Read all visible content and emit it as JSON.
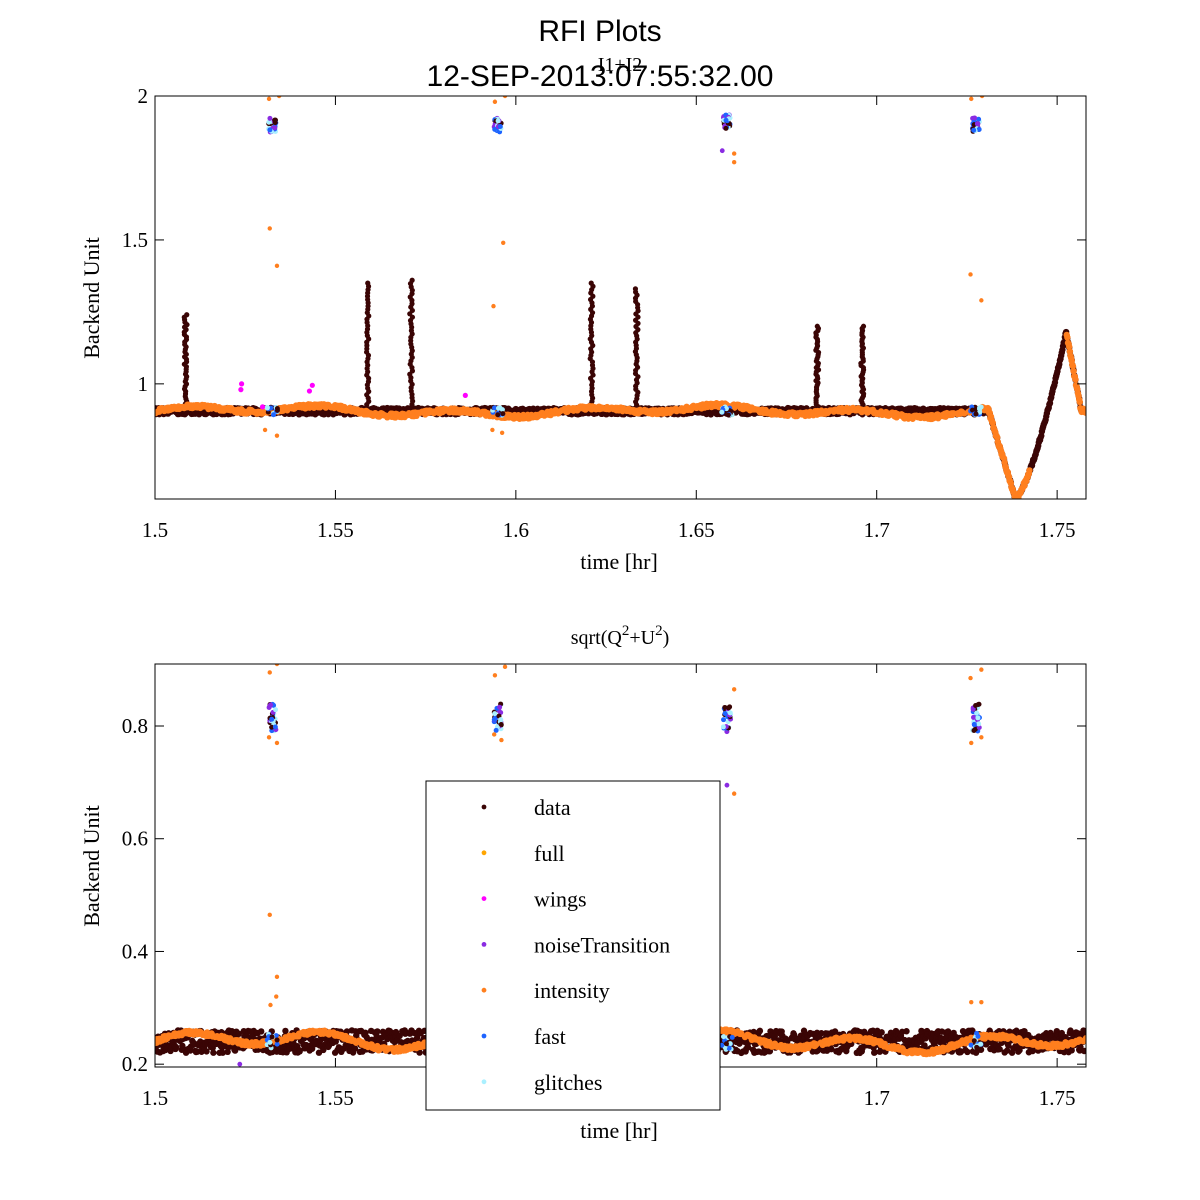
{
  "figure": {
    "title": "RFI Plots",
    "subtitle": "12-SEP-2013:07:55:32.00"
  },
  "colors": {
    "data": "#3a0505",
    "full": "#ffa500",
    "wings": "#ff00ff",
    "noiseTransition": "#8a2be2",
    "intensity": "#ff7f1e",
    "fast": "#1e64ff",
    "glitches": "#aaf0ff"
  },
  "chart_data": [
    {
      "type": "scatter",
      "title": "I1+I2",
      "xlabel": "time [hr]",
      "ylabel": "Backend Unit",
      "xlim": [
        1.5,
        1.758
      ],
      "ylim": [
        0.6,
        2.0
      ],
      "xticks": [
        1.5,
        1.55,
        1.6,
        1.65,
        1.7,
        1.75
      ],
      "xtick_labels": [
        "1.5",
        "1.55",
        "1.6",
        "1.65",
        "1.7",
        "1.75"
      ],
      "yticks": [
        1,
        1.5,
        2
      ],
      "ytick_labels": [
        "1",
        "1.5",
        "2"
      ],
      "baseline": 0.905,
      "spikes": [
        {
          "x": 1.5085,
          "peak": 1.24
        },
        {
          "x": 1.559,
          "peak": 1.35
        },
        {
          "x": 1.571,
          "peak": 1.36
        },
        {
          "x": 1.621,
          "peak": 1.35
        },
        {
          "x": 1.6335,
          "peak": 1.33
        },
        {
          "x": 1.6835,
          "peak": 1.2
        },
        {
          "x": 1.696,
          "peak": 1.2
        }
      ],
      "cal_events": [
        {
          "x": 1.5325,
          "level": 1.9
        },
        {
          "x": 1.595,
          "level": 1.9
        },
        {
          "x": 1.6585,
          "level": 1.91
        },
        {
          "x": 1.7275,
          "level": 1.9
        }
      ],
      "intensity_outliers": [
        {
          "x": 1.5318,
          "y": 1.54
        },
        {
          "x": 1.5338,
          "y": 1.41
        },
        {
          "x": 1.5316,
          "y": 1.99
        },
        {
          "x": 1.5344,
          "y": 2.0
        },
        {
          "x": 1.5305,
          "y": 0.84
        },
        {
          "x": 1.5338,
          "y": 0.82
        },
        {
          "x": 1.5938,
          "y": 1.27
        },
        {
          "x": 1.5965,
          "y": 1.49
        },
        {
          "x": 1.5942,
          "y": 1.98
        },
        {
          "x": 1.597,
          "y": 2.0
        },
        {
          "x": 1.5935,
          "y": 0.84
        },
        {
          "x": 1.5962,
          "y": 0.83
        },
        {
          "x": 1.6605,
          "y": 1.77
        },
        {
          "x": 1.6605,
          "y": 1.8
        },
        {
          "x": 1.726,
          "y": 1.38
        },
        {
          "x": 1.729,
          "y": 1.29
        },
        {
          "x": 1.7262,
          "y": 1.99
        },
        {
          "x": 1.7292,
          "y": 2.0
        }
      ],
      "wings_points": [
        {
          "x": 1.524,
          "y": 1.0
        },
        {
          "x": 1.5238,
          "y": 0.98
        },
        {
          "x": 1.5436,
          "y": 0.995
        },
        {
          "x": 1.5428,
          "y": 0.975
        },
        {
          "x": 1.586,
          "y": 0.96
        },
        {
          "x": 1.5298,
          "y": 0.92
        }
      ],
      "noise_points": [
        {
          "x": 1.6572,
          "y": 1.81
        }
      ],
      "dip": {
        "start": 1.731,
        "min_x": 1.7385,
        "min_y": 0.6,
        "peak_x": 1.7525,
        "peak_y": 1.18,
        "end": 1.758
      }
    },
    {
      "type": "scatter",
      "title_text": "sqrt(Q",
      "title_sup1": "2",
      "title_mid": "+U",
      "title_sup2": "2",
      "title_end": ")",
      "xlabel": "time [hr]",
      "ylabel": "Backend Unit",
      "xlim": [
        1.5,
        1.758
      ],
      "ylim": [
        0.195,
        0.91
      ],
      "xticks": [
        1.5,
        1.55,
        1.6,
        1.65,
        1.7,
        1.75
      ],
      "xtick_labels": [
        "1.5",
        "1.55",
        "1.6",
        "1.65",
        "1.7",
        "1.75"
      ],
      "yticks": [
        0.2,
        0.4,
        0.6,
        0.8
      ],
      "ytick_labels": [
        "0.2",
        "0.4",
        "0.6",
        "0.8"
      ],
      "baseline": 0.24,
      "cal_events": [
        {
          "x": 1.5325,
          "level": 0.815
        },
        {
          "x": 1.595,
          "level": 0.815
        },
        {
          "x": 1.6585,
          "level": 0.815
        },
        {
          "x": 1.7275,
          "level": 0.815
        }
      ],
      "intensity_outliers": [
        {
          "x": 1.5318,
          "y": 0.465
        },
        {
          "x": 1.5338,
          "y": 0.355
        },
        {
          "x": 1.532,
          "y": 0.305
        },
        {
          "x": 1.5336,
          "y": 0.32
        },
        {
          "x": 1.5318,
          "y": 0.895
        },
        {
          "x": 1.5338,
          "y": 0.91
        },
        {
          "x": 1.5316,
          "y": 0.78
        },
        {
          "x": 1.5338,
          "y": 0.77
        },
        {
          "x": 1.5942,
          "y": 0.89
        },
        {
          "x": 1.597,
          "y": 0.905
        },
        {
          "x": 1.594,
          "y": 0.785
        },
        {
          "x": 1.596,
          "y": 0.775
        },
        {
          "x": 1.6605,
          "y": 0.68
        },
        {
          "x": 1.6605,
          "y": 0.865
        },
        {
          "x": 1.726,
          "y": 0.885
        },
        {
          "x": 1.729,
          "y": 0.9
        },
        {
          "x": 1.7262,
          "y": 0.77
        },
        {
          "x": 1.729,
          "y": 0.78
        },
        {
          "x": 1.7262,
          "y": 0.31
        },
        {
          "x": 1.729,
          "y": 0.31
        }
      ],
      "noise_points": [
        {
          "x": 1.6585,
          "y": 0.695
        },
        {
          "x": 1.5235,
          "y": 0.2
        }
      ],
      "legend": {
        "position": "center",
        "entries": [
          {
            "label": "data",
            "key": "data"
          },
          {
            "label": "full",
            "key": "full"
          },
          {
            "label": "wings",
            "key": "wings"
          },
          {
            "label": "noiseTransition",
            "key": "noiseTransition"
          },
          {
            "label": "intensity",
            "key": "intensity"
          },
          {
            "label": "fast",
            "key": "fast"
          },
          {
            "label": "glitches",
            "key": "glitches"
          }
        ]
      }
    }
  ]
}
